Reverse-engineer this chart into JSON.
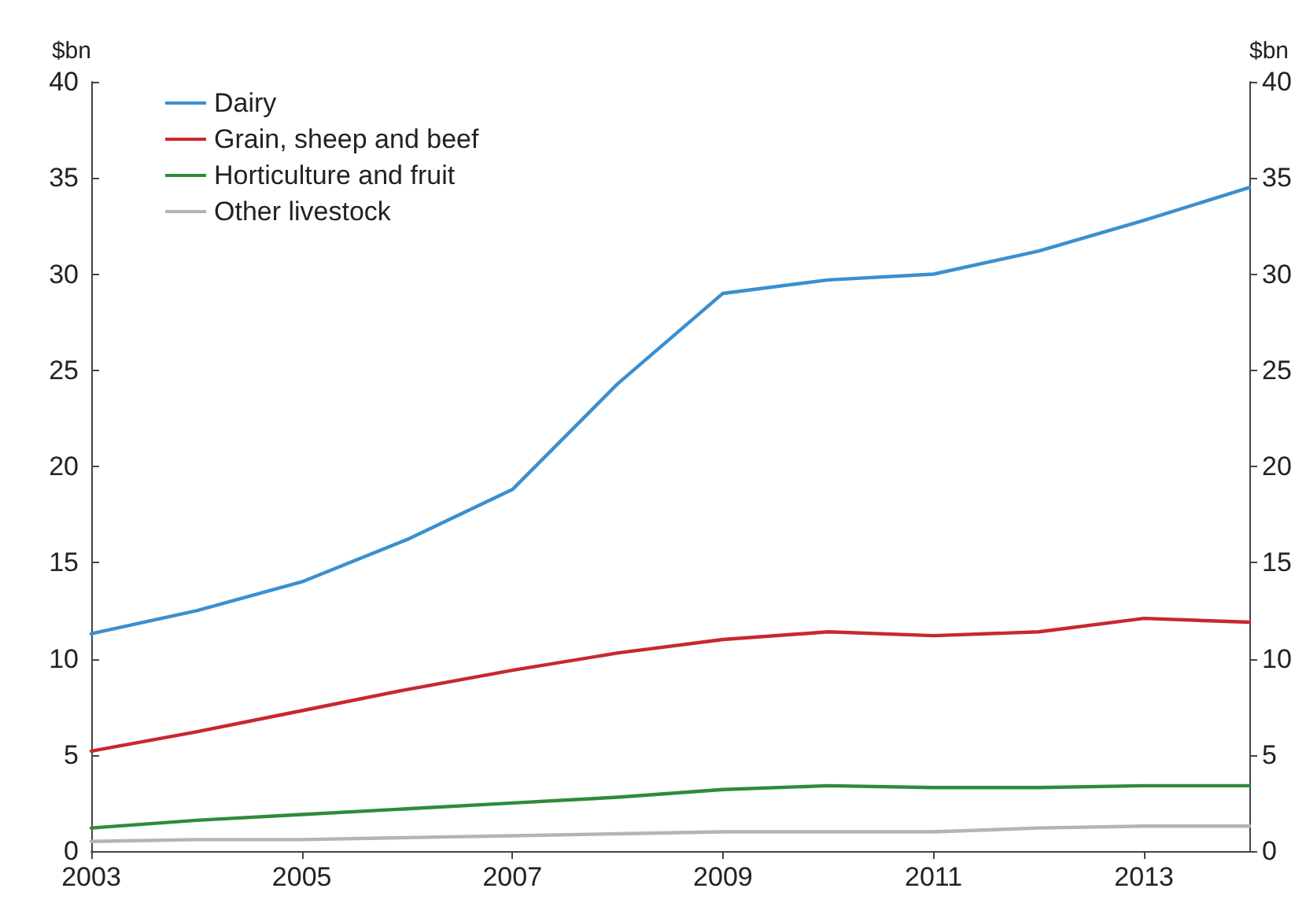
{
  "chart_data": {
    "type": "line",
    "ylabel": "$bn",
    "y2label": "$bn",
    "x": [
      2003,
      2004,
      2005,
      2006,
      2007,
      2008,
      2009,
      2010,
      2011,
      2012,
      2013,
      2014
    ],
    "xlim": [
      2003,
      2014
    ],
    "xticks": [
      2003,
      2005,
      2007,
      2009,
      2011,
      2013
    ],
    "ylim": [
      0,
      40
    ],
    "yticks": [
      0,
      5,
      10,
      15,
      20,
      25,
      30,
      35,
      40
    ],
    "y2lim": [
      0,
      40
    ],
    "y2ticks": [
      0,
      5,
      10,
      15,
      20,
      25,
      30,
      35,
      40
    ],
    "grid": false,
    "legend": "top left",
    "marker": "none",
    "line_style": "solid",
    "series": [
      {
        "name": "Dairy",
        "color": "#3a8fd0",
        "values": [
          11.3,
          12.5,
          14,
          16.2,
          18.8,
          24.3,
          29,
          29.7,
          30,
          31.2,
          32.8,
          34.5
        ]
      },
      {
        "name": "Grain, sheep and beef",
        "color": "#c8282d",
        "values": [
          5.2,
          6.2,
          7.3,
          8.4,
          9.4,
          10.3,
          11,
          11.4,
          11.2,
          11.4,
          12.1,
          11.9
        ]
      },
      {
        "name": "Horticulture and fruit",
        "color": "#2e8b3a",
        "values": [
          1.2,
          1.6,
          1.9,
          2.2,
          2.5,
          2.8,
          3.2,
          3.4,
          3.3,
          3.3,
          3.4,
          3.4
        ]
      },
      {
        "name": "Other livestock",
        "color": "#b4b4b4",
        "values": [
          0.5,
          0.6,
          0.6,
          0.7,
          0.8,
          0.9,
          1.0,
          1.0,
          1.0,
          1.2,
          1.3,
          1.3
        ]
      }
    ]
  }
}
